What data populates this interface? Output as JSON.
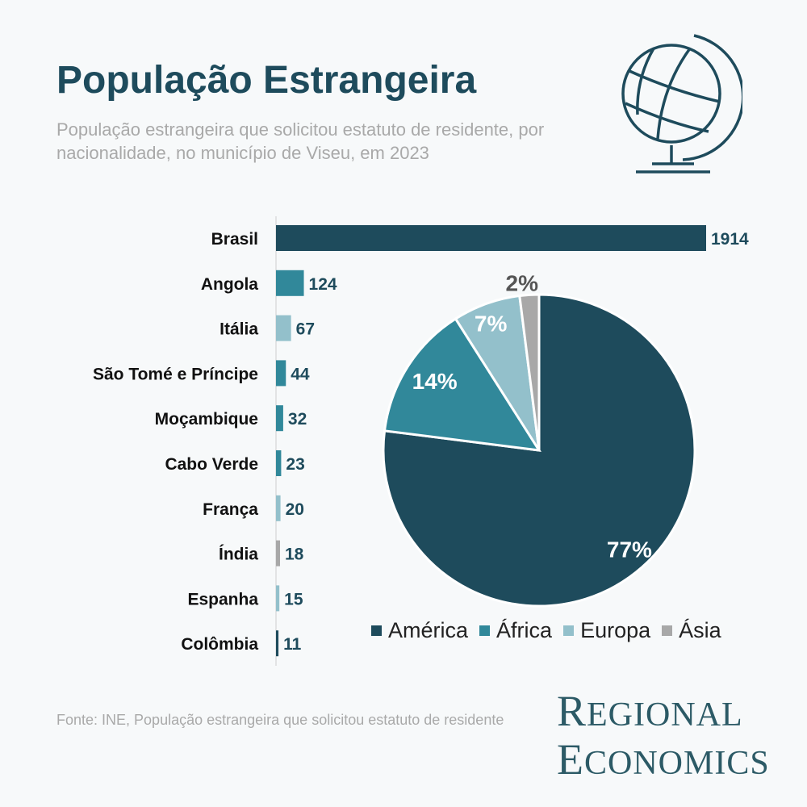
{
  "header": {
    "title": "População Estrangeira",
    "subtitle": "População estrangeira que solicitou estatuto de residente, por nacionalidade, no município de Viseu, em 2023"
  },
  "footer": {
    "source": "Fonte: INE, População estrangeira que solicitou estatuto de residente",
    "logo_line1": "Regional",
    "logo_line2": "Economics"
  },
  "icons": {
    "header_icon": "globe-icon"
  },
  "colors": {
    "america": "#1e4b5c",
    "africa": "#31889a",
    "europa": "#93c0cb",
    "asia": "#a8a8a8",
    "title": "#1e4b5c",
    "muted_text": "#a9a9a9"
  },
  "chart_data": [
    {
      "type": "bar",
      "orientation": "horizontal",
      "categories": [
        "Brasil",
        "Angola",
        "Itália",
        "São Tomé e Príncipe",
        "Moçambique",
        "Cabo Verde",
        "França",
        "Índia",
        "Espanha",
        "Colômbia"
      ],
      "values": [
        1914,
        124,
        67,
        44,
        32,
        23,
        20,
        18,
        15,
        11
      ],
      "continents": [
        "América",
        "África",
        "Europa",
        "África",
        "África",
        "África",
        "Europa",
        "Ásia",
        "Europa",
        "América"
      ],
      "xlim": [
        0,
        1914
      ],
      "grid": false
    },
    {
      "type": "pie",
      "categories": [
        "América",
        "África",
        "Europa",
        "Ásia"
      ],
      "values": [
        77,
        14,
        7,
        2
      ],
      "labels": [
        "77%",
        "14%",
        "7%",
        "2%"
      ],
      "legend": "bottom"
    }
  ]
}
